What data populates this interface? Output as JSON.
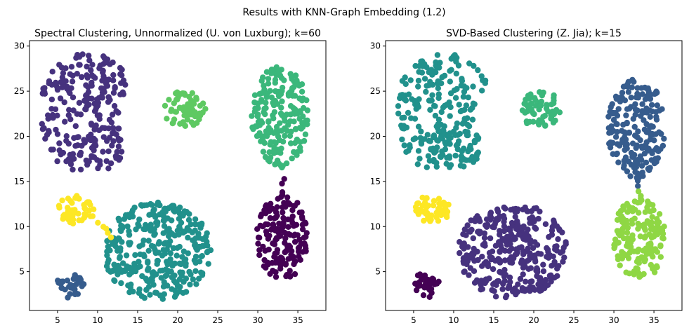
{
  "suptitle": "Results with KNN-Graph Embedding (1.2)",
  "colors": {
    "c0": "#440154",
    "c1": "#46327e",
    "c2": "#365c8d",
    "c3": "#21918c",
    "c4": "#3bb77b",
    "c5": "#5ec962",
    "c6": "#8fd744",
    "c7": "#fde725"
  },
  "chart_data": [
    {
      "type": "scatter",
      "title": "Spectral Clustering, Unnormalized (U. von Luxburg); k=60",
      "xlabel": "",
      "ylabel": "",
      "xlim": [
        1.5,
        38.5
      ],
      "ylim": [
        0.7,
        30.6
      ],
      "xticks": [
        5,
        10,
        15,
        20,
        25,
        30,
        35
      ],
      "yticks": [
        5,
        10,
        15,
        20,
        25,
        30
      ],
      "grid": false,
      "clusters": [
        {
          "shape": "crescent",
          "center": [
            8.8,
            22.5
          ],
          "count": 250,
          "color": "c1"
        },
        {
          "shape": "blob",
          "center": [
            20.8,
            23.0
          ],
          "rx": 2.7,
          "ry": 2.0,
          "count": 60,
          "color": "c5"
        },
        {
          "shape": "blob",
          "center": [
            32.8,
            22.2
          ],
          "rx": 3.6,
          "ry": 5.6,
          "count": 190,
          "color": "c4"
        },
        {
          "shape": "bridge",
          "from": [
            33.1,
            16.4
          ],
          "to": [
            32.6,
            17.2
          ],
          "count": 5,
          "color": "c4"
        },
        {
          "shape": "blob",
          "center": [
            33.1,
            8.8
          ],
          "rx": 3.4,
          "ry": 4.6,
          "count": 160,
          "color": "c0"
        },
        {
          "shape": "bridge",
          "from": [
            33.2,
            12.8
          ],
          "to": [
            33.1,
            15.2
          ],
          "count": 5,
          "color": "c0"
        },
        {
          "shape": "blob",
          "center": [
            17.4,
            7.3
          ],
          "rx": 6.8,
          "ry": 5.4,
          "count": 330,
          "color": "c3"
        },
        {
          "shape": "blob",
          "center": [
            7.3,
            11.9
          ],
          "rx": 2.2,
          "ry": 1.6,
          "count": 50,
          "color": "c7"
        },
        {
          "shape": "bridge",
          "from": [
            9.6,
            11.0
          ],
          "to": [
            11.8,
            8.7
          ],
          "count": 6,
          "color": "c7"
        },
        {
          "shape": "blob",
          "center": [
            6.6,
            3.5
          ],
          "rx": 1.7,
          "ry": 1.4,
          "count": 36,
          "color": "c2"
        }
      ]
    },
    {
      "type": "scatter",
      "title": "SVD-Based Clustering (Z. Jia); k=15",
      "xlabel": "",
      "ylabel": "",
      "xlim": [
        1.5,
        38.5
      ],
      "ylim": [
        0.7,
        30.6
      ],
      "xticks": [
        5,
        10,
        15,
        20,
        25,
        30,
        35
      ],
      "yticks": [
        5,
        10,
        15,
        20,
        25,
        30
      ],
      "grid": false,
      "clusters": [
        {
          "shape": "crescent",
          "center": [
            8.8,
            22.5
          ],
          "count": 250,
          "color": "c3"
        },
        {
          "shape": "blob",
          "center": [
            20.8,
            23.0
          ],
          "rx": 2.7,
          "ry": 2.0,
          "count": 60,
          "color": "c4"
        },
        {
          "shape": "blob",
          "center": [
            32.8,
            21.0
          ],
          "rx": 3.6,
          "ry": 5.6,
          "count": 190,
          "color": "c2"
        },
        {
          "shape": "bridge",
          "from": [
            32.9,
            14.5
          ],
          "to": [
            32.6,
            16.6
          ],
          "count": 5,
          "color": "c2"
        },
        {
          "shape": "blob",
          "center": [
            33.1,
            8.6
          ],
          "rx": 3.4,
          "ry": 4.6,
          "count": 160,
          "color": "c6"
        },
        {
          "shape": "bridge",
          "from": [
            33.2,
            12.8
          ],
          "to": [
            33.2,
            13.9
          ],
          "count": 4,
          "color": "c6"
        },
        {
          "shape": "blob",
          "center": [
            17.4,
            7.3
          ],
          "rx": 6.8,
          "ry": 5.4,
          "count": 330,
          "color": "c1"
        },
        {
          "shape": "blob",
          "center": [
            7.3,
            11.9
          ],
          "rx": 2.2,
          "ry": 1.6,
          "count": 50,
          "color": "c7"
        },
        {
          "shape": "blob",
          "center": [
            6.6,
            3.5
          ],
          "rx": 1.7,
          "ry": 1.4,
          "count": 36,
          "color": "c0"
        }
      ]
    }
  ]
}
